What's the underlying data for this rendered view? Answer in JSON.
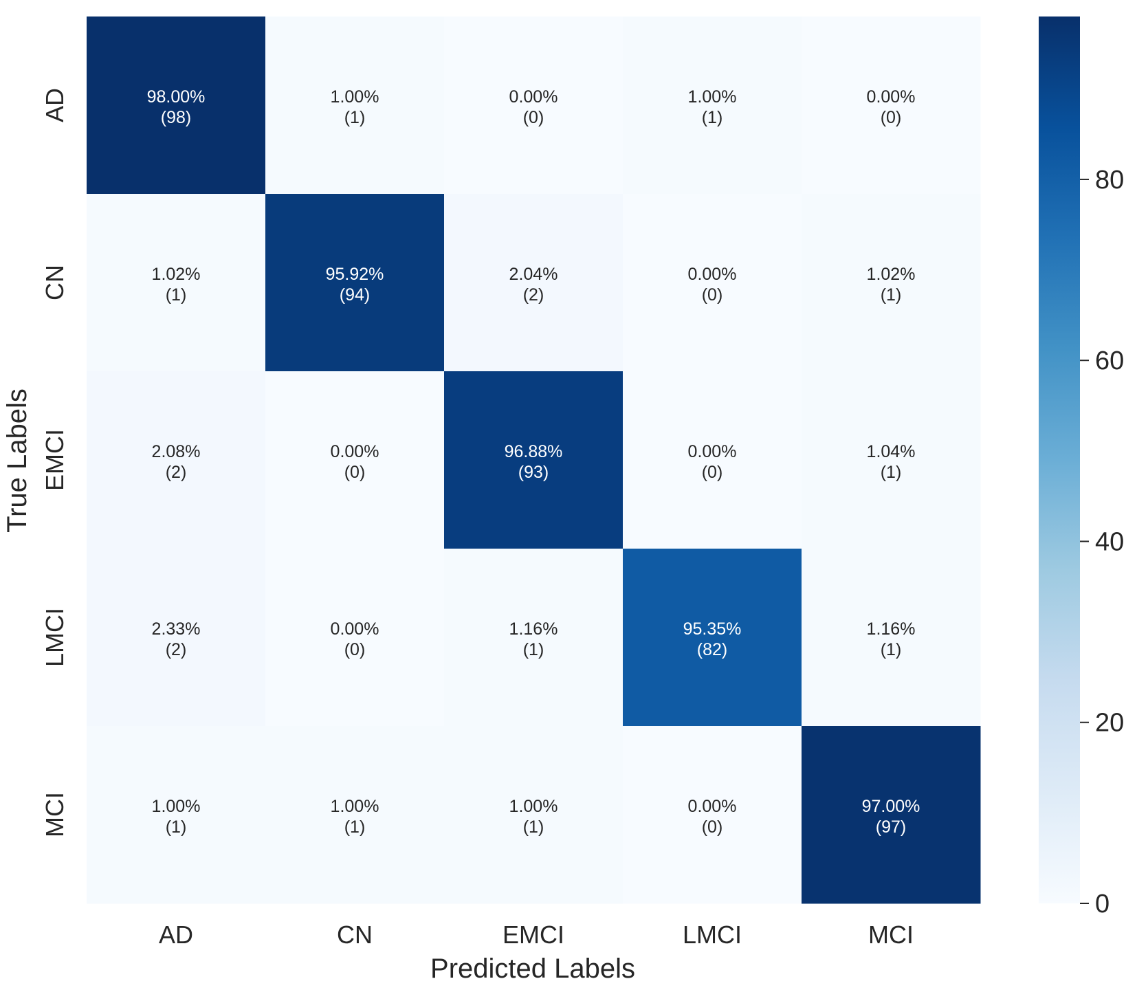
{
  "chart_data": {
    "type": "heatmap",
    "title": "",
    "xlabel": "Predicted Labels",
    "ylabel": "True Labels",
    "x_categories": [
      "AD",
      "CN",
      "EMCI",
      "LMCI",
      "MCI"
    ],
    "y_categories": [
      "AD",
      "CN",
      "EMCI",
      "LMCI",
      "MCI"
    ],
    "counts": [
      [
        98,
        1,
        0,
        1,
        0
      ],
      [
        1,
        94,
        2,
        0,
        1
      ],
      [
        2,
        0,
        93,
        0,
        1
      ],
      [
        2,
        0,
        1,
        82,
        1
      ],
      [
        1,
        1,
        1,
        0,
        97
      ]
    ],
    "percents": [
      [
        "98.00%",
        "1.00%",
        "0.00%",
        "1.00%",
        "0.00%"
      ],
      [
        "1.02%",
        "95.92%",
        "2.04%",
        "0.00%",
        "1.02%"
      ],
      [
        "2.08%",
        "0.00%",
        "96.88%",
        "0.00%",
        "1.04%"
      ],
      [
        "2.33%",
        "0.00%",
        "1.16%",
        "95.35%",
        "1.16%"
      ],
      [
        "1.00%",
        "1.00%",
        "1.00%",
        "0.00%",
        "97.00%"
      ]
    ],
    "cell_labels": [
      [
        "(98)",
        "(1)",
        "(0)",
        "(1)",
        "(0)"
      ],
      [
        "(1)",
        "(94)",
        "(2)",
        "(0)",
        "(1)"
      ],
      [
        "(2)",
        "(0)",
        "(93)",
        "(0)",
        "(1)"
      ],
      [
        "(2)",
        "(0)",
        "(1)",
        "(82)",
        "(1)"
      ],
      [
        "(1)",
        "(1)",
        "(1)",
        "(0)",
        "(97)"
      ]
    ],
    "colorbar": {
      "colormap": "Blues",
      "range": [
        0,
        98
      ],
      "ticks": [
        0,
        20,
        40,
        60,
        80
      ],
      "tick_labels": [
        "0",
        "20",
        "40",
        "60",
        "80"
      ]
    },
    "grid": false,
    "legend": "colorbar-right"
  }
}
